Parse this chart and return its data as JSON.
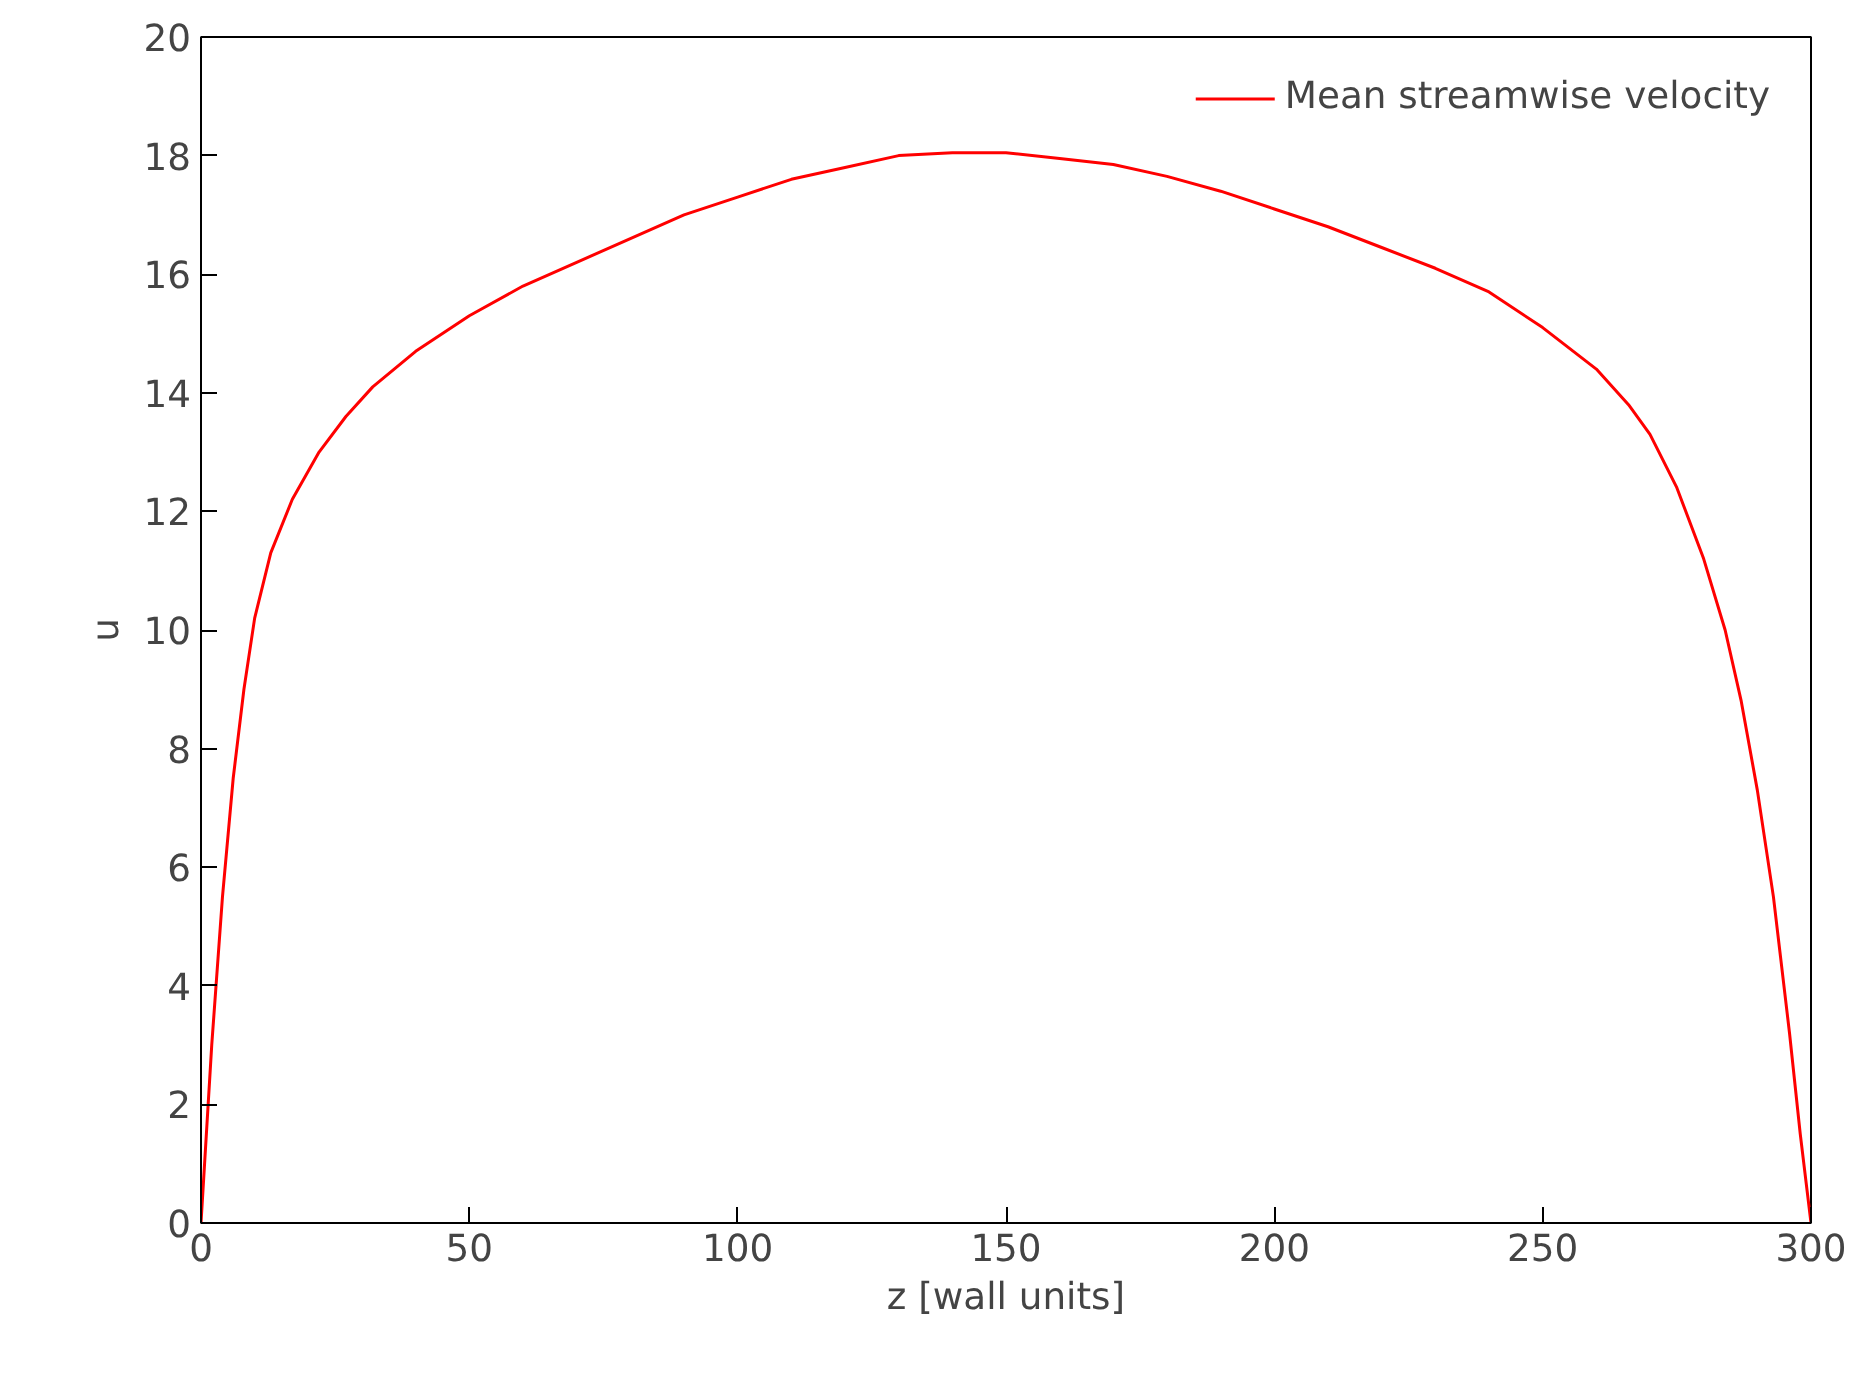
{
  "chart_data": {
    "type": "line",
    "xlabel": "z [wall units]",
    "ylabel": "u",
    "xlim": [
      0,
      300
    ],
    "ylim": [
      0,
      20
    ],
    "xticks": [
      0,
      50,
      100,
      150,
      200,
      250,
      300
    ],
    "yticks": [
      0,
      2,
      4,
      6,
      8,
      10,
      12,
      14,
      16,
      18,
      20
    ],
    "grid": false,
    "legend": "top right",
    "line_style": "solid",
    "marker": "none",
    "series": [
      {
        "name": "Mean streamwise velocity",
        "color": "#ff0000",
        "x": [
          0,
          2,
          4,
          6,
          8,
          10,
          13,
          17,
          22,
          27,
          32,
          40,
          50,
          60,
          70,
          80,
          90,
          100,
          110,
          120,
          130,
          140,
          150,
          160,
          170,
          180,
          190,
          200,
          210,
          220,
          230,
          240,
          250,
          260,
          266,
          270,
          275,
          280,
          284,
          287,
          290,
          293,
          296,
          298,
          300
        ],
        "values": [
          0,
          3,
          5.5,
          7.5,
          9,
          10.2,
          11.3,
          12.2,
          13,
          13.6,
          14.1,
          14.7,
          15.3,
          15.8,
          16.2,
          16.6,
          17,
          17.3,
          17.6,
          17.8,
          18,
          18.05,
          18.05,
          17.95,
          17.85,
          17.65,
          17.4,
          17.1,
          16.8,
          16.45,
          16.1,
          15.7,
          15.1,
          14.4,
          13.8,
          13.3,
          12.4,
          11.2,
          10,
          8.8,
          7.3,
          5.5,
          3.2,
          1.5,
          0
        ]
      }
    ]
  }
}
